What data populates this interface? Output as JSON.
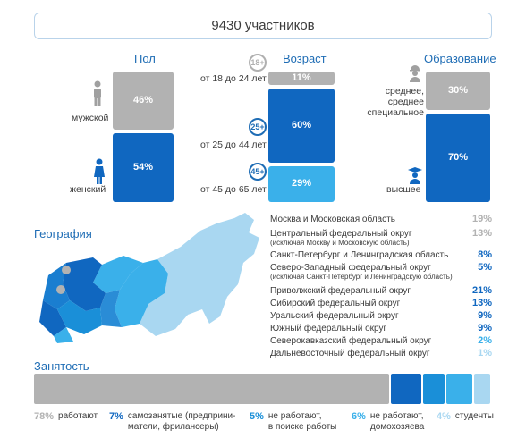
{
  "total": "9430 участников",
  "colors": {
    "gray": "#b2b2b2",
    "blue_dark": "#1067c0",
    "blue_mid": "#1a8fd8",
    "blue_light": "#3ab0ea",
    "blue_pale": "#a9d7f1",
    "title_blue": "#1f6db5"
  },
  "chart_data": [
    {
      "type": "bar",
      "title": "Пол",
      "categories": [
        "мужской",
        "женский"
      ],
      "values": [
        46,
        54
      ],
      "value_labels": [
        "46%",
        "54%"
      ],
      "icons": [
        "male-person-icon",
        "female-person-icon"
      ]
    },
    {
      "type": "bar",
      "title": "Возраст",
      "categories": [
        "от 18 до 24 лет",
        "от 25 до 44 лет",
        "от 45 до 65 лет"
      ],
      "values": [
        11,
        60,
        29
      ],
      "value_labels": [
        "11%",
        "60%",
        "29%"
      ],
      "badges": [
        "18+",
        "25+",
        "45+"
      ]
    },
    {
      "type": "bar",
      "title": "Образование",
      "categories": [
        "среднее, среднее специальное",
        "высшее"
      ],
      "values": [
        30,
        70
      ],
      "value_labels": [
        "30%",
        "70%"
      ],
      "icons": [
        "worker-icon",
        "graduate-icon"
      ]
    },
    {
      "type": "table",
      "title": "География",
      "rows": [
        {
          "name": "Москва и Московская область",
          "note": "",
          "value": 19,
          "label": "19%",
          "color": "gray"
        },
        {
          "name": "Центральный федеральный округ",
          "note": "(исключая Москву и Московскую область)",
          "value": 13,
          "label": "13%",
          "color": "gray"
        },
        {
          "name": "Санкт-Петербург и Ленинградская область",
          "note": "",
          "value": 8,
          "label": "8%",
          "color": "blue_dark"
        },
        {
          "name": "Северо-Западный федеральный округ",
          "note": "(исключая Санкт-Петербург и Ленинградскую область)",
          "value": 5,
          "label": "5%",
          "color": "blue_dark"
        },
        {
          "name": "Приволжский федеральный округ",
          "note": "",
          "value": 21,
          "label": "21%",
          "color": "blue_dark"
        },
        {
          "name": "Сибирский федеральный округ",
          "note": "",
          "value": 13,
          "label": "13%",
          "color": "blue_dark"
        },
        {
          "name": "Уральский федеральный округ",
          "note": "",
          "value": 9,
          "label": "9%",
          "color": "blue_dark"
        },
        {
          "name": "Южный федеральный округ",
          "note": "",
          "value": 9,
          "label": "9%",
          "color": "blue_dark"
        },
        {
          "name": "Северокавказский федеральный округ",
          "note": "",
          "value": 2,
          "label": "2%",
          "color": "blue_light"
        },
        {
          "name": "Дальневосточный федеральный округ",
          "note": "",
          "value": 1,
          "label": "1%",
          "color": "blue_pale"
        }
      ]
    },
    {
      "type": "bar",
      "title": "Занятость",
      "categories": [
        "работают",
        "самозанятые (предприни-матели, фрилансеры)",
        "не работают, в поиске работы",
        "не работают, домохозяева",
        "студенты"
      ],
      "category_lines": [
        [
          "работают"
        ],
        [
          "самозанятые (предприни-",
          "матели, фрилансеры)"
        ],
        [
          "не работают,",
          "в поиске работы"
        ],
        [
          "не работают,",
          "домохозяева"
        ],
        [
          "студенты"
        ]
      ],
      "values": [
        78,
        7,
        5,
        6,
        4
      ],
      "value_labels": [
        "78%",
        "7%",
        "5%",
        "6%",
        "4%"
      ],
      "colors": [
        "gray",
        "blue_dark",
        "blue_mid",
        "blue_light",
        "blue_pale"
      ]
    }
  ]
}
